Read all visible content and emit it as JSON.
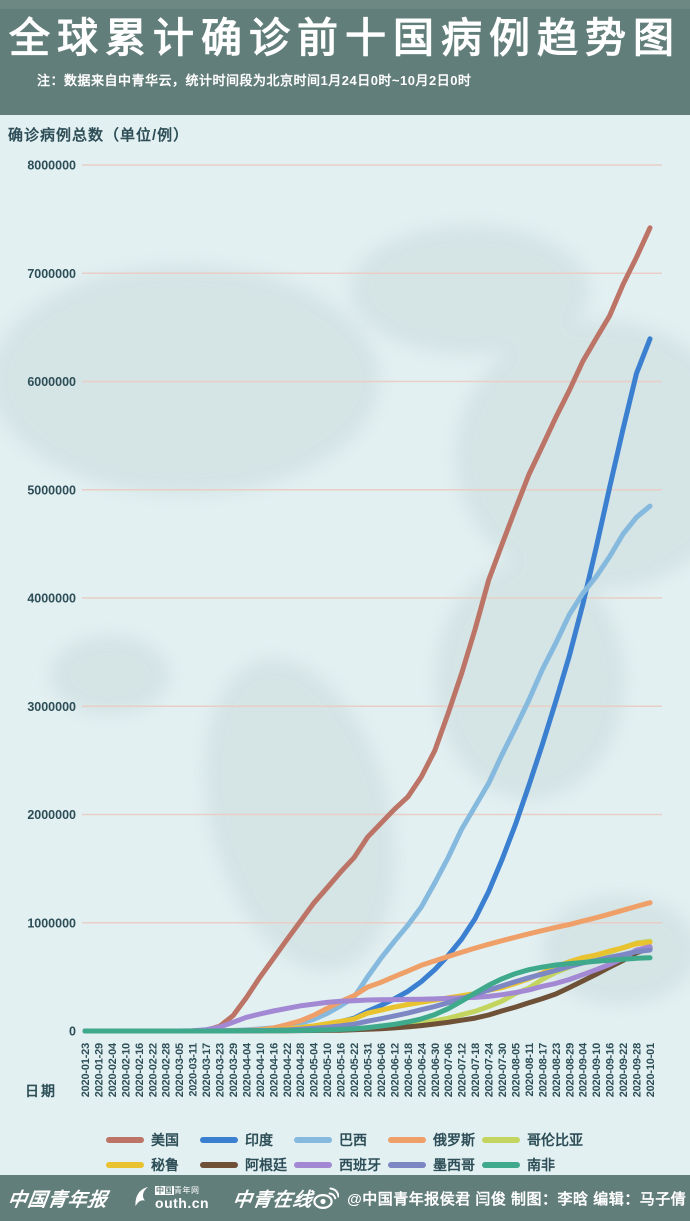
{
  "header": {
    "title": "全球累计确诊前十国病例趋势图",
    "note": "注：数据来自中青华云，统计时间段为北京时间1月24日0时~10月2日0时"
  },
  "chart_data": {
    "type": "line",
    "title": "全球累计确诊前十国病例趋势图",
    "xlabel": "日期",
    "ylabel": "确诊病例总数（单位/例）",
    "ylim": [
      0,
      8000000
    ],
    "y_ticks": [
      0,
      1000000,
      2000000,
      3000000,
      4000000,
      5000000,
      6000000,
      7000000,
      8000000
    ],
    "grid": true,
    "legend_position": "bottom",
    "x": [
      "2020-01-23",
      "2020-01-29",
      "2020-02-04",
      "2020-02-10",
      "2020-02-16",
      "2020-02-22",
      "2020-02-28",
      "2020-03-05",
      "2020-03-11",
      "2020-03-17",
      "2020-03-23",
      "2020-03-29",
      "2020-04-04",
      "2020-04-10",
      "2020-04-16",
      "2020-04-22",
      "2020-04-28",
      "2020-05-04",
      "2020-05-10",
      "2020-05-16",
      "2020-05-22",
      "2020-05-31",
      "2020-06-06",
      "2020-06-12",
      "2020-06-18",
      "2020-06-24",
      "2020-06-30",
      "2020-07-06",
      "2020-07-12",
      "2020-07-18",
      "2020-07-24",
      "2020-07-30",
      "2020-08-05",
      "2020-08-11",
      "2020-08-17",
      "2020-08-23",
      "2020-08-29",
      "2020-09-04",
      "2020-09-10",
      "2020-09-16",
      "2020-09-22",
      "2020-09-28",
      "2020-10-01"
    ],
    "series": [
      {
        "key": "us",
        "name": "美国",
        "color": "#bc7467",
        "values": [
          1,
          5,
          11,
          12,
          15,
          35,
          60,
          220,
          1300,
          6400,
          43800,
          140900,
          308900,
          496500,
          667800,
          842600,
          1010500,
          1180400,
          1322800,
          1467800,
          1600500,
          1790200,
          1920000,
          2048000,
          2163300,
          2347100,
          2590600,
          2935800,
          3304900,
          3711500,
          4163900,
          4495000,
          4823900,
          5141200,
          5403200,
          5668600,
          5917200,
          6184800,
          6398000,
          6606300,
          6897600,
          7147200,
          7420000
        ]
      },
      {
        "key": "india",
        "name": "印度",
        "color": "#3b7fd1",
        "values": [
          1,
          1,
          3,
          3,
          3,
          3,
          3,
          30,
          62,
          142,
          499,
          1024,
          3082,
          7600,
          12759,
          21393,
          31324,
          42533,
          62939,
          85940,
          118447,
          182143,
          236657,
          297535,
          366946,
          456183,
          566840,
          697413,
          849522,
          1038715,
          1287945,
          1583792,
          1908254,
          2268675,
          2647663,
          3044940,
          3463972,
          3936747,
          4465863,
          5020359,
          5562663,
          6074702,
          6394068
        ]
      },
      {
        "key": "brazil",
        "name": "巴西",
        "color": "#85b9dd",
        "values": [
          0,
          0,
          0,
          0,
          0,
          0,
          1,
          4,
          34,
          291,
          1891,
          4256,
          10278,
          19638,
          28320,
          45757,
          71886,
          107780,
          162699,
          233142,
          310087,
          498440,
          672846,
          828810,
          978142,
          1145906,
          1368195,
          1603055,
          1864681,
          2074860,
          2287475,
          2552265,
          2801921,
          3057470,
          3340197,
          3582362,
          3846153,
          4041638,
          4197889,
          4382263,
          4591364,
          4745464,
          4849229
        ]
      },
      {
        "key": "russia",
        "name": "俄罗斯",
        "color": "#ef9f68",
        "values": [
          0,
          0,
          2,
          2,
          2,
          2,
          2,
          4,
          20,
          114,
          438,
          1534,
          4731,
          11917,
          27938,
          57999,
          93558,
          145268,
          209688,
          272043,
          326448,
          405843,
          449834,
          502436,
          553301,
          606881,
          647849,
          687862,
          727162,
          765437,
          800849,
          834499,
          866627,
          897599,
          927745,
          956749,
          982573,
          1015105,
          1046370,
          1079519,
          1115810,
          1151438,
          1185231
        ]
      },
      {
        "key": "colombia",
        "name": "哥伦比亚",
        "color": "#c4d55f",
        "values": [
          0,
          0,
          0,
          0,
          0,
          0,
          0,
          0,
          1,
          75,
          277,
          702,
          1406,
          2473,
          3105,
          4149,
          5597,
          7973,
          10495,
          14216,
          18330,
          29383,
          36635,
          45212,
          60217,
          77113,
          95043,
          117110,
          150445,
          182140,
          226373,
          276055,
          345714,
          397623,
          476660,
          541139,
          590492,
          650055,
          694664,
          728590,
          770435,
          813056,
          829679
        ]
      },
      {
        "key": "peru",
        "name": "秘鲁",
        "color": "#e9c230",
        "values": [
          0,
          0,
          0,
          0,
          0,
          0,
          0,
          1,
          13,
          117,
          395,
          852,
          1746,
          5897,
          12491,
          19250,
          31190,
          47372,
          67307,
          88541,
          111698,
          164476,
          191758,
          220749,
          244388,
          264689,
          285213,
          305703,
          326326,
          345537,
          375961,
          400683,
          439890,
          483133,
          535946,
          594326,
          639435,
          676848,
          702776,
          738020,
          768895,
          805302,
          818297
        ]
      },
      {
        "key": "argentina",
        "name": "阿根廷",
        "color": "#6e5137",
        "values": [
          0,
          0,
          0,
          0,
          0,
          0,
          0,
          1,
          19,
          65,
          266,
          745,
          1451,
          1975,
          2571,
          3144,
          4127,
          4887,
          5776,
          7479,
          10649,
          16851,
          21037,
          28764,
          37510,
          49851,
          64530,
          80447,
          100166,
          119301,
          148027,
          185373,
          220682,
          260911,
          299126,
          342154,
          401239,
          461882,
          524198,
          589012,
          652174,
          723132,
          765002
        ]
      },
      {
        "key": "spain",
        "name": "西班牙",
        "color": "#a388d4",
        "values": [
          0,
          0,
          1,
          2,
          2,
          2,
          32,
          261,
          2277,
          11748,
          35136,
          80110,
          126168,
          157022,
          184948,
          208389,
          232128,
          248301,
          264663,
          274367,
          280117,
          286509,
          288390,
          290289,
          292348,
          294166,
          296351,
          300988,
          305935,
          310290,
          319501,
          335602,
          354530,
          380000,
          412553,
          440000,
          475840,
          520000,
          566326,
          614360,
          671468,
          748266,
          778607
        ]
      },
      {
        "key": "mexico",
        "name": "墨西哥",
        "color": "#7d87c4",
        "values": [
          0,
          0,
          0,
          0,
          0,
          0,
          1,
          5,
          11,
          93,
          367,
          848,
          1890,
          3844,
          6297,
          10544,
          16752,
          24905,
          35022,
          47144,
          62527,
          90664,
          113619,
          139196,
          165455,
          196847,
          226089,
          261750,
          299750,
          338913,
          378285,
          416179,
          456100,
          492522,
          525733,
          560164,
          595841,
          629409,
          652364,
          680931,
          705263,
          733717,
          748315
        ]
      },
      {
        "key": "south-africa",
        "name": "南非",
        "color": "#3fa98c",
        "values": [
          0,
          0,
          0,
          0,
          0,
          0,
          0,
          1,
          13,
          85,
          402,
          1280,
          1585,
          2003,
          2506,
          3465,
          4996,
          7220,
          10015,
          14355,
          19137,
          30967,
          45973,
          61927,
          83890,
          111796,
          151209,
          205721,
          276242,
          350879,
          421996,
          482169,
          529877,
          566109,
          589886,
          609773,
          622551,
          633015,
          644438,
          653444,
          663282,
          671669,
          676084
        ]
      }
    ]
  },
  "footer": {
    "logo_paper": "中国青年报",
    "logo_web_badge_box": "中国",
    "logo_web_badge_rest": "青年网",
    "logo_web_url": "outh.cn",
    "logo_online": "中青在线",
    "credit": "@中国青年报侯君 闫俊 制图：李晗 编辑：马子倩",
    "icons": {
      "weibo": "weibo-icon",
      "dove": "dove-icon"
    }
  },
  "colors": {
    "header_bg": "#627e7a",
    "chart_bg": "#e3f0f2",
    "grid_line": "#e9cec6",
    "axis_text": "#2d4e57",
    "map_shape": "#cfdfe0"
  }
}
